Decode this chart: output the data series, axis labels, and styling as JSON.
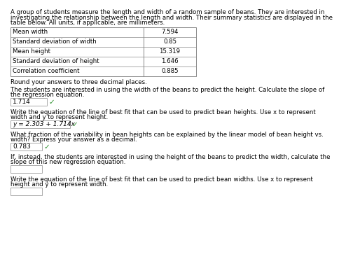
{
  "intro_text_lines": [
    "A group of students measure the length and width of a random sample of beans. They are interested in",
    "investigating the relationship between the length and width. Their summary statistics are displayed in the",
    "table below. All units, if applicable, are millimeters."
  ],
  "table_rows": [
    [
      "Mean width",
      "7.594"
    ],
    [
      "Standard deviation of width",
      "0.85"
    ],
    [
      "Mean height",
      "15.319"
    ],
    [
      "Standard deviation of height",
      "1.646"
    ],
    [
      "Correlation coefficient",
      "0.885"
    ]
  ],
  "round_text": "Round your answers to three decimal places.",
  "q1_text_lines": [
    "The students are interested in using the width of the beans to predict the height. Calculate the slope of",
    "the regression equation."
  ],
  "q1_answer": "1.714",
  "q2_text_lines": [
    "Write the equation of the line of best fit that can be used to predict bean heights. Use x to represent",
    "width and y to represent height."
  ],
  "q2_answer": "y = 2.303 + 1.714x",
  "q3_text_lines": [
    "What fraction of the variability in bean heights can be explained by the linear model of bean height vs.",
    "width? Express your answer as a decimal."
  ],
  "q3_answer": "0.783",
  "q4_text_lines": [
    "If, instead, the students are interested in using the height of the beans to predict the width, calculate the",
    "slope of this new regression equation."
  ],
  "q4_answer": "",
  "q5_text_lines": [
    "Write the equation of the line of best fit that can be used to predict bean widths. Use x to represent",
    "height and y to represent width."
  ],
  "q5_answer": "",
  "bg_color": "#ffffff",
  "text_color": "#000000",
  "answer_box_border": "#aaaaaa",
  "correct_color": "#228B22",
  "table_border_color": "#888888",
  "font_size": 6.2,
  "answer_font_size": 6.5
}
